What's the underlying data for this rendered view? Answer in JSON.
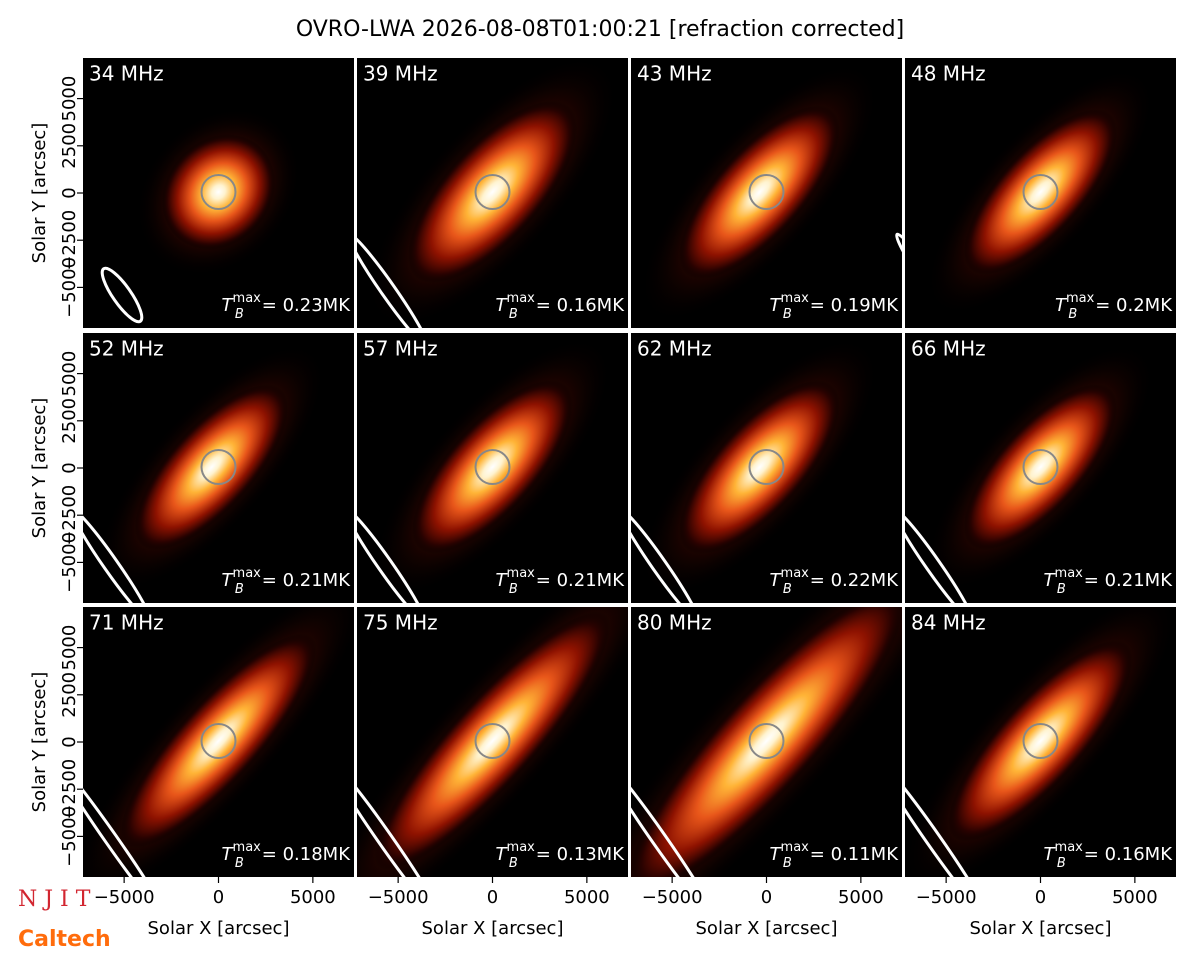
{
  "chart_data": {
    "type": "image-grid",
    "title": "OVRO-LWA 2026-08-08T01:00:21 [refraction corrected]",
    "x_label": "Solar X [arcsec]",
    "y_label": "Solar Y [arcsec]",
    "xlim": [
      -7180,
      7180
    ],
    "ylim": [
      -7150,
      7150
    ],
    "xticks": [
      {
        "value": -5000,
        "label": "−5000"
      },
      0,
      5000
    ],
    "yticks": [
      {
        "value": -5000,
        "label": "−5000"
      },
      {
        "value": -2500,
        "label": "−2500"
      },
      0,
      2500,
      5000
    ],
    "tb_symbol": "T",
    "tb_subscript": "B",
    "tb_superscript": "max",
    "panels": [
      {
        "label": "34 MHz",
        "tb": "= 0.23MK"
      },
      {
        "label": "39 MHz",
        "tb": "= 0.16MK"
      },
      {
        "label": "43 MHz",
        "tb": "= 0.19MK"
      },
      {
        "label": "48 MHz",
        "tb": "= 0.2MK"
      },
      {
        "label": "52 MHz",
        "tb": "= 0.21MK"
      },
      {
        "label": "57 MHz",
        "tb": "= 0.21MK"
      },
      {
        "label": "62 MHz",
        "tb": "= 0.22MK"
      },
      {
        "label": "66 MHz",
        "tb": "= 0.21MK"
      },
      {
        "label": "71 MHz",
        "tb": "= 0.18MK"
      },
      {
        "label": "75 MHz",
        "tb": "= 0.13MK"
      },
      {
        "label": "80 MHz",
        "tb": "= 0.11MK"
      },
      {
        "label": "84 MHz",
        "tb": "= 0.16MK"
      }
    ],
    "logos": [
      "N J I T",
      "Caltech"
    ]
  }
}
